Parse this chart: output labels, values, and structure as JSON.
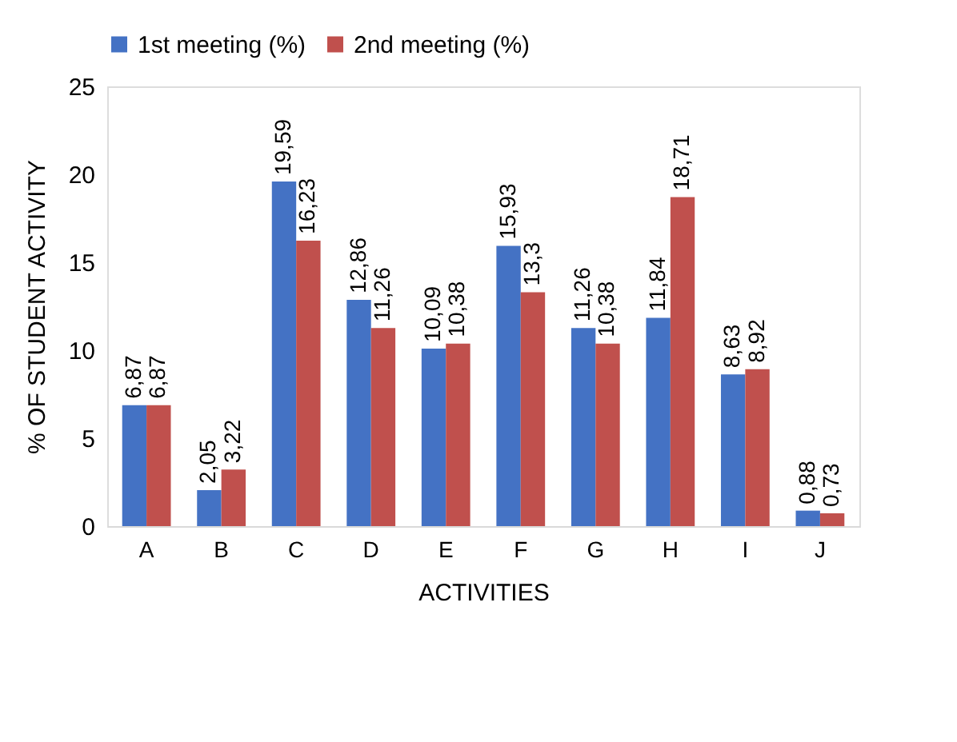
{
  "chart_data": {
    "type": "bar",
    "xlabel": "ACTIVITIES",
    "ylabel": "% OF STUDENT ACTIVITY",
    "categories": [
      "A",
      "B",
      "C",
      "D",
      "E",
      "F",
      "G",
      "H",
      "I",
      "J"
    ],
    "series": [
      {
        "name": "1st meeting (%)",
        "color": "#4472c4",
        "values": [
          6.87,
          2.05,
          19.59,
          12.86,
          10.09,
          15.93,
          11.26,
          11.84,
          8.63,
          0.88
        ],
        "value_labels": [
          "6,87",
          "2,05",
          "19,59",
          "12,86",
          "10,09",
          "15,93",
          "11,26",
          "11,84",
          "8,63",
          "0,88"
        ]
      },
      {
        "name": "2nd meeting (%)",
        "color": "#c0504d",
        "values": [
          6.87,
          3.22,
          16.23,
          11.26,
          10.38,
          13.3,
          10.38,
          18.71,
          8.92,
          0.73
        ],
        "value_labels": [
          "6,87",
          "3,22",
          "16,23",
          "11,26",
          "10,38",
          "13,3",
          "10,38",
          "18,71",
          "8,92",
          "0,73"
        ]
      }
    ],
    "ylim": [
      0,
      25
    ],
    "yticks": [
      0,
      5,
      10,
      15,
      20,
      25
    ],
    "grid": false,
    "legend": "top"
  }
}
